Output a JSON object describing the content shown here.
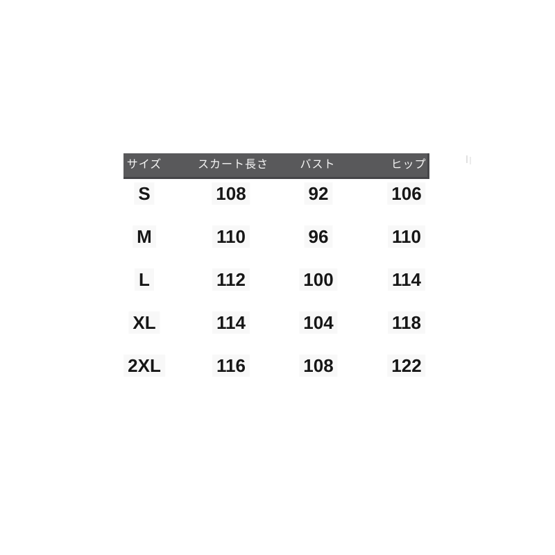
{
  "page": {
    "background": "#ffffff"
  },
  "size_chart": {
    "columns": [
      "サイズ",
      "スカート長さ",
      "バスト",
      "ヒップ"
    ],
    "rows": [
      {
        "size": "S",
        "skirt_length": "108",
        "bust": "92",
        "hip": "106"
      },
      {
        "size": "M",
        "skirt_length": "110",
        "bust": "96",
        "hip": "110"
      },
      {
        "size": "L",
        "skirt_length": "112",
        "bust": "100",
        "hip": "114"
      },
      {
        "size": "XL",
        "skirt_length": "114",
        "bust": "104",
        "hip": "118"
      },
      {
        "size": "2XL",
        "skirt_length": "116",
        "bust": "108",
        "hip": "122"
      }
    ],
    "colors": {
      "header_bg": "#59595b",
      "header_edge": "#47474a",
      "header_text": "#f4f4f4",
      "body_text": "#161616"
    }
  },
  "chart_data": {
    "type": "table",
    "columns": [
      "サイズ",
      "スカート長さ",
      "バスト",
      "ヒップ"
    ],
    "rows": [
      [
        "S",
        108,
        92,
        106
      ],
      [
        "M",
        110,
        96,
        110
      ],
      [
        "L",
        112,
        100,
        114
      ],
      [
        "XL",
        114,
        104,
        118
      ],
      [
        "2XL",
        116,
        108,
        122
      ]
    ],
    "layout": {
      "header_background": "#59595b",
      "grid": "off",
      "alignment": "center"
    }
  }
}
